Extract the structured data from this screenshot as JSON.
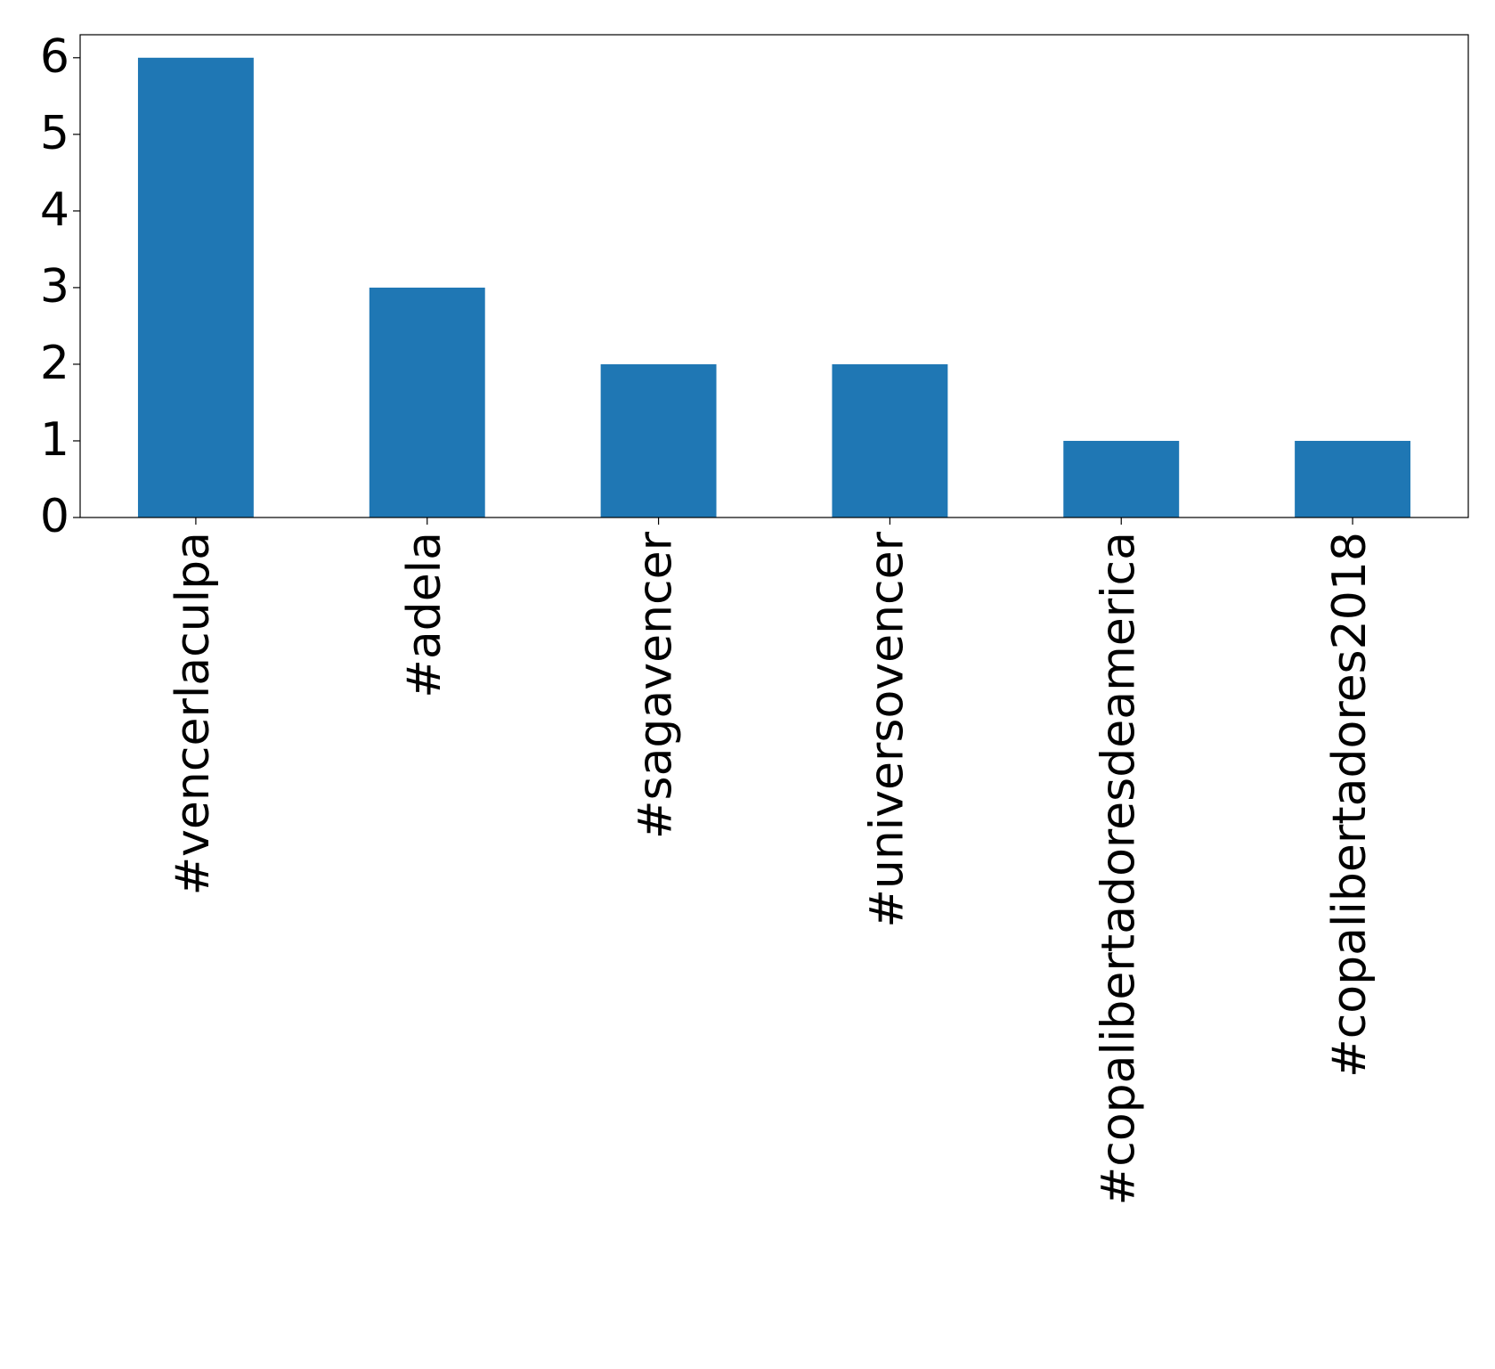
{
  "chart_data": {
    "type": "bar",
    "categories": [
      "#vencerlaculpa",
      "#adela",
      "#sagavencer",
      "#universovencer",
      "#copalibertadoresdeamerica",
      "#copalibertadores2018"
    ],
    "values": [
      6,
      3,
      2,
      2,
      1,
      1
    ],
    "color": "#1f77b4",
    "ylim": [
      0,
      6.3
    ],
    "yticks": [
      0,
      1,
      2,
      3,
      4,
      5,
      6
    ],
    "grid": false
  }
}
